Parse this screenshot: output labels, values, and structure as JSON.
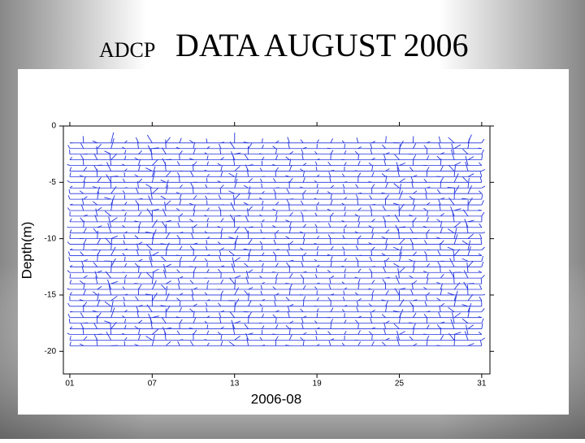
{
  "chart_data": {
    "type": "quiver",
    "title_prefix": "ADCP",
    "title": "DATA AUGUST 2006",
    "xlabel": "2006-08",
    "ylabel": "Depth(m)",
    "xlim": [
      0.53,
      31.6
    ],
    "xticks": [
      {
        "value": 1,
        "label": "01"
      },
      {
        "value": 7,
        "label": "07"
      },
      {
        "value": 13,
        "label": "13"
      },
      {
        "value": 19,
        "label": "19"
      },
      {
        "value": 25,
        "label": "25"
      },
      {
        "value": 31,
        "label": "31"
      }
    ],
    "ylim": [
      -22,
      0
    ],
    "yticks": [
      0,
      -5,
      -10,
      -15,
      -20
    ],
    "x": [
      1,
      2,
      3,
      4,
      5,
      6,
      7,
      8,
      9,
      10,
      11,
      12,
      13,
      14,
      15,
      16,
      17,
      18,
      19,
      20,
      21,
      22,
      23,
      24,
      25,
      26,
      27,
      28,
      29,
      30,
      31
    ],
    "stick_magnitude": [
      0.4,
      0.6,
      0.7,
      1.0,
      0.4,
      0.6,
      1.0,
      0.8,
      0.5,
      0.6,
      0.4,
      0.5,
      0.9,
      0.7,
      0.4,
      0.5,
      0.6,
      0.5,
      0.4,
      0.5,
      0.4,
      0.5,
      0.5,
      0.6,
      0.9,
      0.6,
      0.5,
      0.6,
      1.0,
      0.9,
      0.5
    ],
    "depths": [
      -1.5,
      -2,
      -2.5,
      -3,
      -3.5,
      -4,
      -4.5,
      -5,
      -5.5,
      -6,
      -6.5,
      -7,
      -7.5,
      -8,
      -8.5,
      -9,
      -9.5,
      -10,
      -10.5,
      -11,
      -11.5,
      -12,
      -12.5,
      -13,
      -13.5,
      -14,
      -14.5,
      -15,
      -15.5,
      -16,
      -16.5,
      -17,
      -17.5,
      -18,
      -18.5,
      -19,
      -19.5
    ],
    "color": "#2233dd"
  }
}
